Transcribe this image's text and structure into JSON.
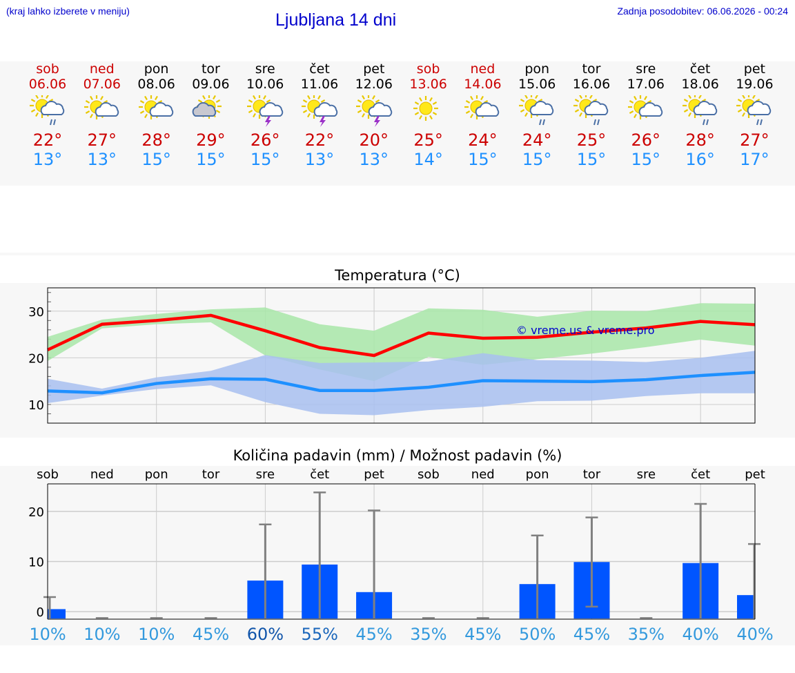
{
  "header": {
    "left": "(kraj lahko izberete v meniju)",
    "title": "Ljubljana 14 dni",
    "right": "Zadnja posodobitev: 06.06.2026 - 00:24"
  },
  "colors": {
    "weekend": "#cc0000",
    "max_temp": "#ff0000",
    "min_temp": "#1e90ff",
    "max_band": "#a8e6a8",
    "min_band": "#a8c0f0",
    "bar": "#0055ff",
    "link": "#0000cc"
  },
  "days": [
    {
      "name": "sob",
      "date": "06.06",
      "weekend": true,
      "icon": "sun-cloud-rain-icon",
      "tmax": "22°",
      "tmin": "13°"
    },
    {
      "name": "ned",
      "date": "07.06",
      "weekend": true,
      "icon": "sun-cloud-icon",
      "tmax": "27°",
      "tmin": "13°"
    },
    {
      "name": "pon",
      "date": "08.06",
      "weekend": false,
      "icon": "sun-cloud-icon",
      "tmax": "28°",
      "tmin": "15°"
    },
    {
      "name": "tor",
      "date": "09.06",
      "weekend": false,
      "icon": "sun-cloud-grey-icon",
      "tmax": "29°",
      "tmin": "15°"
    },
    {
      "name": "sre",
      "date": "10.06",
      "weekend": false,
      "icon": "sun-storm-icon",
      "tmax": "26°",
      "tmin": "15°"
    },
    {
      "name": "čet",
      "date": "11.06",
      "weekend": false,
      "icon": "sun-storm-icon",
      "tmax": "22°",
      "tmin": "13°"
    },
    {
      "name": "pet",
      "date": "12.06",
      "weekend": false,
      "icon": "sun-storm-icon",
      "tmax": "20°",
      "tmin": "13°"
    },
    {
      "name": "sob",
      "date": "13.06",
      "weekend": true,
      "icon": "sun-icon",
      "tmax": "25°",
      "tmin": "14°"
    },
    {
      "name": "ned",
      "date": "14.06",
      "weekend": true,
      "icon": "sun-cloud-icon",
      "tmax": "24°",
      "tmin": "15°"
    },
    {
      "name": "pon",
      "date": "15.06",
      "weekend": false,
      "icon": "sun-cloud-rain-icon",
      "tmax": "24°",
      "tmin": "15°"
    },
    {
      "name": "tor",
      "date": "16.06",
      "weekend": false,
      "icon": "sun-cloud-rain-icon",
      "tmax": "25°",
      "tmin": "15°"
    },
    {
      "name": "sre",
      "date": "17.06",
      "weekend": false,
      "icon": "sun-cloud-icon",
      "tmax": "26°",
      "tmin": "15°"
    },
    {
      "name": "čet",
      "date": "18.06",
      "weekend": false,
      "icon": "sun-cloud-rain-icon",
      "tmax": "28°",
      "tmin": "16°"
    },
    {
      "name": "pet",
      "date": "19.06",
      "weekend": false,
      "icon": "sun-cloud-rain-icon",
      "tmax": "27°",
      "tmin": "17°"
    }
  ],
  "chart_data": [
    {
      "type": "line",
      "title": "Temperatura (°C)",
      "ylim": [
        6,
        35
      ],
      "yticks": [
        10,
        20,
        30
      ],
      "watermark": "© vreme.us & vreme.pro",
      "x": [
        "06.06",
        "07.06",
        "08.06",
        "09.06",
        "10.06",
        "11.06",
        "12.06",
        "13.06",
        "14.06",
        "15.06",
        "16.06",
        "17.06",
        "18.06",
        "19.06"
      ],
      "series": [
        {
          "values": [
            21.7,
            27.2,
            28.0,
            29.1,
            25.8,
            22.2,
            20.5,
            25.3,
            24.2,
            24.4,
            25.5,
            26.4,
            27.8,
            27.1
          ],
          "band_low": [
            19.3,
            26.3,
            27.2,
            27.6,
            20.5,
            17.5,
            15.0,
            20.2,
            18.5,
            19.7,
            20.9,
            22.3,
            23.9,
            22.6
          ],
          "band_high": [
            24.5,
            28.2,
            29.4,
            30.4,
            30.8,
            27.2,
            25.8,
            30.6,
            30.3,
            28.8,
            30.1,
            30.0,
            31.7,
            31.6
          ]
        },
        {
          "values": [
            12.9,
            12.5,
            14.5,
            15.5,
            15.4,
            13.0,
            13.0,
            13.7,
            15.1,
            15.0,
            14.9,
            15.3,
            16.2,
            16.9
          ],
          "band_low": [
            10.3,
            11.9,
            13.3,
            14.1,
            10.5,
            8.0,
            7.7,
            8.8,
            9.5,
            10.7,
            10.8,
            11.8,
            12.4,
            12.4
          ],
          "band_high": [
            15.5,
            13.4,
            15.8,
            17.2,
            20.6,
            18.9,
            19.0,
            19.2,
            21.0,
            19.5,
            19.4,
            19.1,
            20.0,
            21.5
          ]
        }
      ]
    },
    {
      "type": "bar",
      "title": "Količina padavin (mm) / Možnost padavin (%)",
      "ylim": [
        -1.5,
        25.5
      ],
      "yticks": [
        0,
        10,
        20
      ],
      "categories": [
        "sob",
        "ned",
        "pon",
        "tor",
        "sre",
        "čet",
        "pet",
        "sob",
        "ned",
        "pon",
        "tor",
        "sre",
        "čet",
        "pet"
      ],
      "values": [
        0.5,
        0,
        0,
        0,
        6.2,
        9.4,
        3.9,
        0,
        0,
        5.5,
        9.9,
        0,
        9.7,
        3.3
      ],
      "error_high": [
        2.9,
        0,
        0,
        0,
        17.4,
        23.8,
        20.2,
        0,
        0,
        15.2,
        18.8,
        0,
        21.5,
        13.5
      ],
      "error_low": [
        0,
        0,
        0,
        0,
        0,
        0,
        0,
        0,
        0,
        0,
        1,
        0,
        0,
        0
      ],
      "probability": [
        "10%",
        "10%",
        "10%",
        "45%",
        "60%",
        "55%",
        "45%",
        "35%",
        "45%",
        "50%",
        "45%",
        "35%",
        "40%",
        "40%"
      ],
      "prob_colors": [
        "#3399dd",
        "#3399dd",
        "#3399dd",
        "#3399dd",
        "#1155aa",
        "#1a66bb",
        "#3399dd",
        "#3399dd",
        "#3399dd",
        "#3399dd",
        "#3399dd",
        "#3399dd",
        "#3399dd",
        "#3399dd"
      ]
    }
  ]
}
